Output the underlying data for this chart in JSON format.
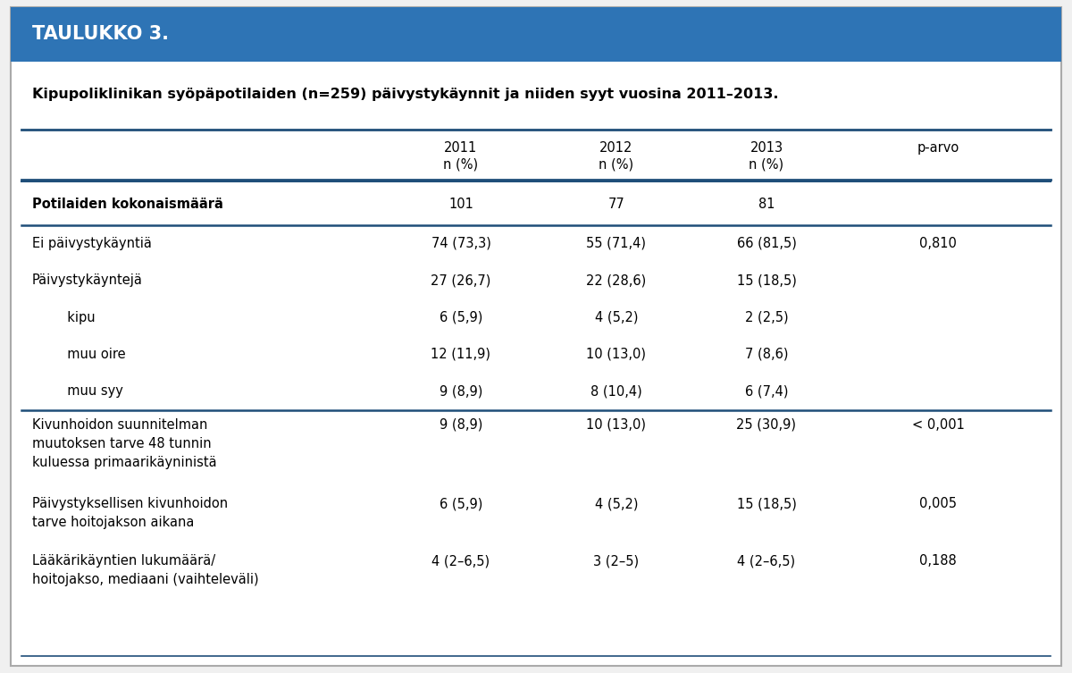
{
  "header_title": "TAULUKKO 3.",
  "header_bg": "#2E74B5",
  "header_text_color": "#FFFFFF",
  "subtitle": "Kipupoliklinikan syöpäpotilaiden (n=259) päivystykäynnit ja niiden syyt vuosina 2011–2013.",
  "col_headers": [
    [
      "2011",
      "n (%)"
    ],
    [
      "2012",
      "n (%)"
    ],
    [
      "2013",
      "n (%)"
    ],
    [
      "p-arvo",
      ""
    ]
  ],
  "rows": [
    {
      "label": "Potilaiden kokonaismäärä",
      "vals": [
        "101",
        "77",
        "81",
        ""
      ],
      "bold": true,
      "indent": 0,
      "sep_above": true,
      "sep_below": true
    },
    {
      "label": "Ei päivystykäyntiä",
      "vals": [
        "74 (73,3)",
        "55 (71,4)",
        "66 (81,5)",
        "0,810"
      ],
      "bold": false,
      "indent": 0,
      "sep_above": false,
      "sep_below": false
    },
    {
      "label": "Päivystykäyntejä",
      "vals": [
        "27 (26,7)",
        "22 (28,6)",
        "15 (18,5)",
        ""
      ],
      "bold": false,
      "indent": 0,
      "sep_above": false,
      "sep_below": false
    },
    {
      "label": "  kipu",
      "vals": [
        "6 (5,9)",
        "4 (5,2)",
        "2 (2,5)",
        ""
      ],
      "bold": false,
      "indent": 1,
      "sep_above": false,
      "sep_below": false
    },
    {
      "label": "  muu oire",
      "vals": [
        "12 (11,9)",
        "10 (13,0)",
        "7 (8,6)",
        ""
      ],
      "bold": false,
      "indent": 1,
      "sep_above": false,
      "sep_below": false
    },
    {
      "label": "  muu syy",
      "vals": [
        "9 (8,9)",
        "8 (10,4)",
        "6 (7,4)",
        ""
      ],
      "bold": false,
      "indent": 1,
      "sep_above": false,
      "sep_below": true
    },
    {
      "label": "Kivunhoidon suunnitelman\nmuutoksen tarve 48 tunnin\nkuluessa primaarikäyninistä",
      "vals": [
        "9 (8,9)",
        "10 (13,0)",
        "25 (30,9)",
        "< 0,001"
      ],
      "bold": false,
      "indent": 0,
      "sep_above": false,
      "sep_below": false,
      "multiline": true
    },
    {
      "label": "Päivystyksellisen kivunhoidon\ntarve hoitojakson aikana",
      "vals": [
        "6 (5,9)",
        "4 (5,2)",
        "15 (18,5)",
        "0,005"
      ],
      "bold": false,
      "indent": 0,
      "sep_above": false,
      "sep_below": false,
      "multiline": true
    },
    {
      "label": "Lääkärikäyntien lukumäärä/\nhoitojakso, mediaani (vaihteleväli)",
      "vals": [
        "4 (2–6,5)",
        "3 (2–5)",
        "4 (2–6,5)",
        "0,188"
      ],
      "bold": false,
      "indent": 0,
      "sep_above": false,
      "sep_below": false,
      "multiline": true
    }
  ],
  "bg_color": "#FFFFFF",
  "border_color": "#1F4E79",
  "text_color": "#000000",
  "outer_border_color": "#AAAAAA"
}
